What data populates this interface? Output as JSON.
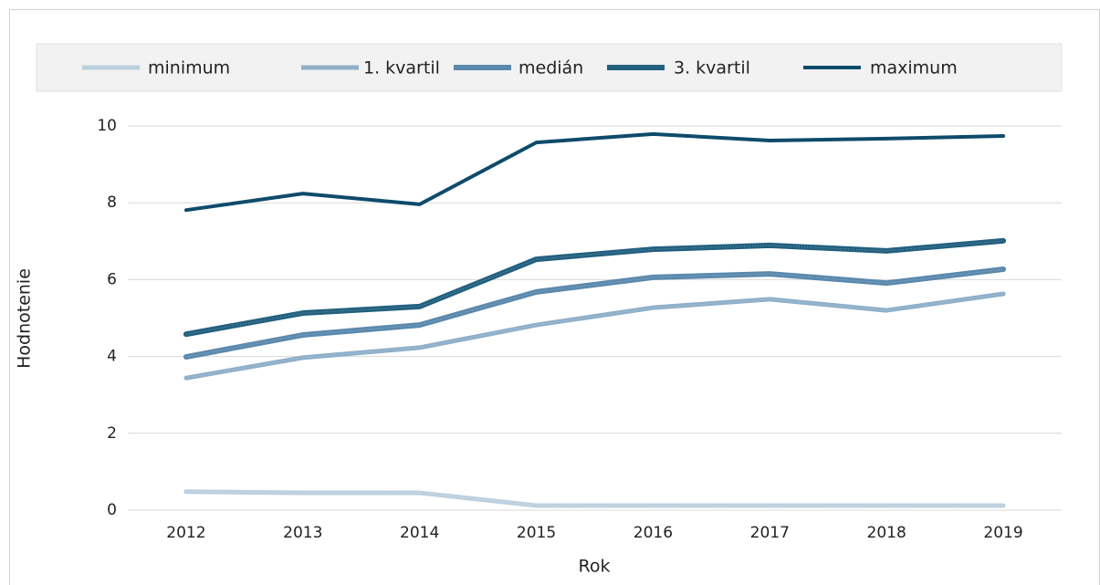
{
  "chart_data": {
    "type": "line",
    "x_label": "Rok",
    "y_label": "Hodnotenie",
    "categories": [
      "2012",
      "2013",
      "2014",
      "2015",
      "2016",
      "2017",
      "2018",
      "2019"
    ],
    "series": [
      {
        "name": "minimum",
        "color": "#bcd0df",
        "values": [
          0.48,
          0.45,
          0.45,
          0.12,
          0.12,
          0.12,
          0.12,
          0.12
        ]
      },
      {
        "name": "1. kvartil",
        "color": "#8eafc9",
        "values": [
          3.44,
          3.97,
          4.23,
          4.82,
          5.27,
          5.49,
          5.2,
          5.63
        ]
      },
      {
        "name": "medián",
        "color": "#5b89ad",
        "values": [
          3.99,
          4.56,
          4.82,
          5.68,
          6.06,
          6.15,
          5.91,
          6.27
        ]
      },
      {
        "name": "3. kvartil",
        "color": "#23607f",
        "values": [
          4.58,
          5.13,
          5.3,
          6.53,
          6.79,
          6.89,
          6.75,
          7.01
        ]
      },
      {
        "name": "maximum",
        "color": "#0e4b6b",
        "values": [
          7.81,
          8.24,
          7.96,
          9.57,
          9.79,
          9.62,
          9.67,
          9.74
        ]
      }
    ],
    "ylim": [
      0,
      10
    ],
    "yticks": [
      0,
      2,
      4,
      6,
      8,
      10
    ],
    "grid": true,
    "legend": "top"
  }
}
